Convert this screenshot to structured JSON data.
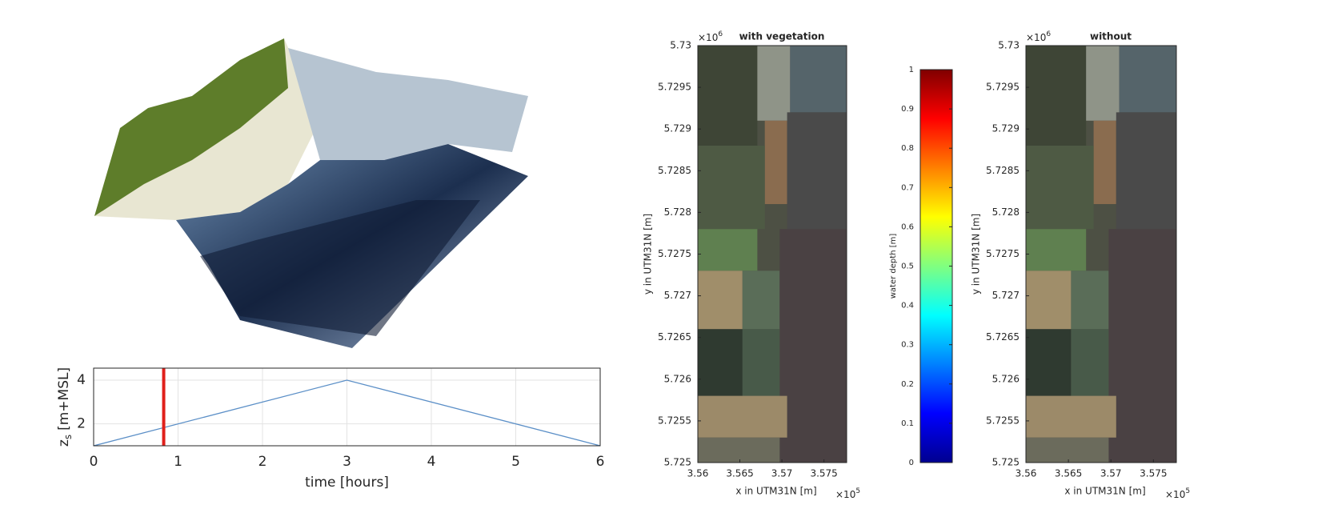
{
  "chart_data": [
    {
      "type": "line",
      "x": [
        0,
        3,
        6
      ],
      "values": [
        1,
        4,
        1
      ],
      "color": "#5b8fc7",
      "marker_x": 0.83,
      "marker_color": "#e0201b",
      "xlim": [
        0,
        6
      ],
      "xticks": [
        0,
        1,
        2,
        3,
        4,
        5,
        6
      ],
      "ylim": [
        1,
        4.55
      ],
      "yticks": [
        2,
        4
      ],
      "grid": true,
      "xlabel": "time [hours]",
      "ylabel": "z",
      "ylabel_subscript": "s",
      "ylabel_unit": "[m+MSL]"
    },
    {
      "type": "map",
      "title": "with vegetation",
      "xlim": [
        3.56,
        3.5777
      ],
      "xticks": [
        3.56,
        3.565,
        3.57,
        3.575
      ],
      "ylim": [
        5.725,
        5.73
      ],
      "yticks": [
        5.725,
        5.7255,
        5.726,
        5.7265,
        5.727,
        5.7275,
        5.728,
        5.7285,
        5.729,
        5.7295,
        5.73
      ],
      "xlabel": "x in UTM31N [m]",
      "ylabel": "y in UTM31N [m]",
      "x_multiplier": "×10",
      "x_exponent": "5",
      "y_multiplier": "×10",
      "y_exponent": "6"
    },
    {
      "type": "colorbar",
      "ylim": [
        0,
        1
      ],
      "yticks": [
        0,
        0.1,
        0.2,
        0.3,
        0.4,
        0.5,
        0.6,
        0.7,
        0.8,
        0.9,
        1
      ],
      "label": "water depth [m]",
      "colors": [
        "#00008f",
        "#0000ff",
        "#0080ff",
        "#00ffff",
        "#80ff80",
        "#ffff00",
        "#ff8000",
        "#ff0000",
        "#800000"
      ]
    },
    {
      "type": "map",
      "title": "without",
      "xlim": [
        3.56,
        3.5777
      ],
      "xticks": [
        3.56,
        3.565,
        3.57,
        3.575
      ],
      "ylim": [
        5.725,
        5.73
      ],
      "yticks": [
        5.725,
        5.7255,
        5.726,
        5.7265,
        5.727,
        5.7275,
        5.728,
        5.7285,
        5.729,
        5.7295,
        5.73
      ],
      "xlabel": "x in UTM31N [m]",
      "ylabel": "y in UTM31N [m]",
      "x_multiplier": "×10",
      "x_exponent": "5",
      "y_multiplier": "×10",
      "y_exponent": "6"
    }
  ]
}
